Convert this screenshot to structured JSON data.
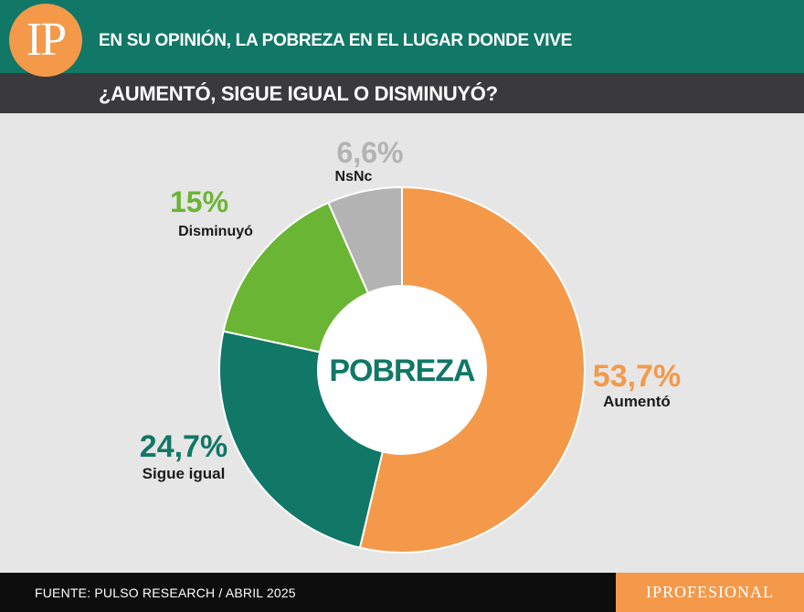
{
  "header": {
    "logo_text": "IP",
    "title_line1": "EN SU OPINIÓN, LA POBREZA EN EL LUGAR DONDE VIVE",
    "title_line2": "¿AUMENTÓ, SIGUE IGUAL O DISMINUYÓ?"
  },
  "chart_data": {
    "type": "pie",
    "center_label": "POBREZA",
    "slices": [
      {
        "label": "Aumentó",
        "value": 53.7,
        "value_text": "53,7%",
        "color": "#f4994a",
        "label_color": "#f4994a"
      },
      {
        "label": "Sigue igual",
        "value": 24.7,
        "value_text": "24,7%",
        "color": "#117766",
        "label_color": "#117766"
      },
      {
        "label": "Disminuyó",
        "value": 15,
        "value_text": "15%",
        "color": "#6ab534",
        "label_color": "#6ab534"
      },
      {
        "label": "NsNc",
        "value": 6.6,
        "value_text": "6,6%",
        "color": "#b3b3b3",
        "label_color": "#b3b3b3"
      }
    ]
  },
  "footer": {
    "source": "FUENTE: PULSO RESEARCH / ABRIL 2025",
    "brand": "IPROFESIONAL"
  },
  "colors": {
    "header_green": "#117766",
    "header_dark": "#3a3a3c",
    "accent_orange": "#f4994a",
    "background": "#e6e6e6"
  }
}
